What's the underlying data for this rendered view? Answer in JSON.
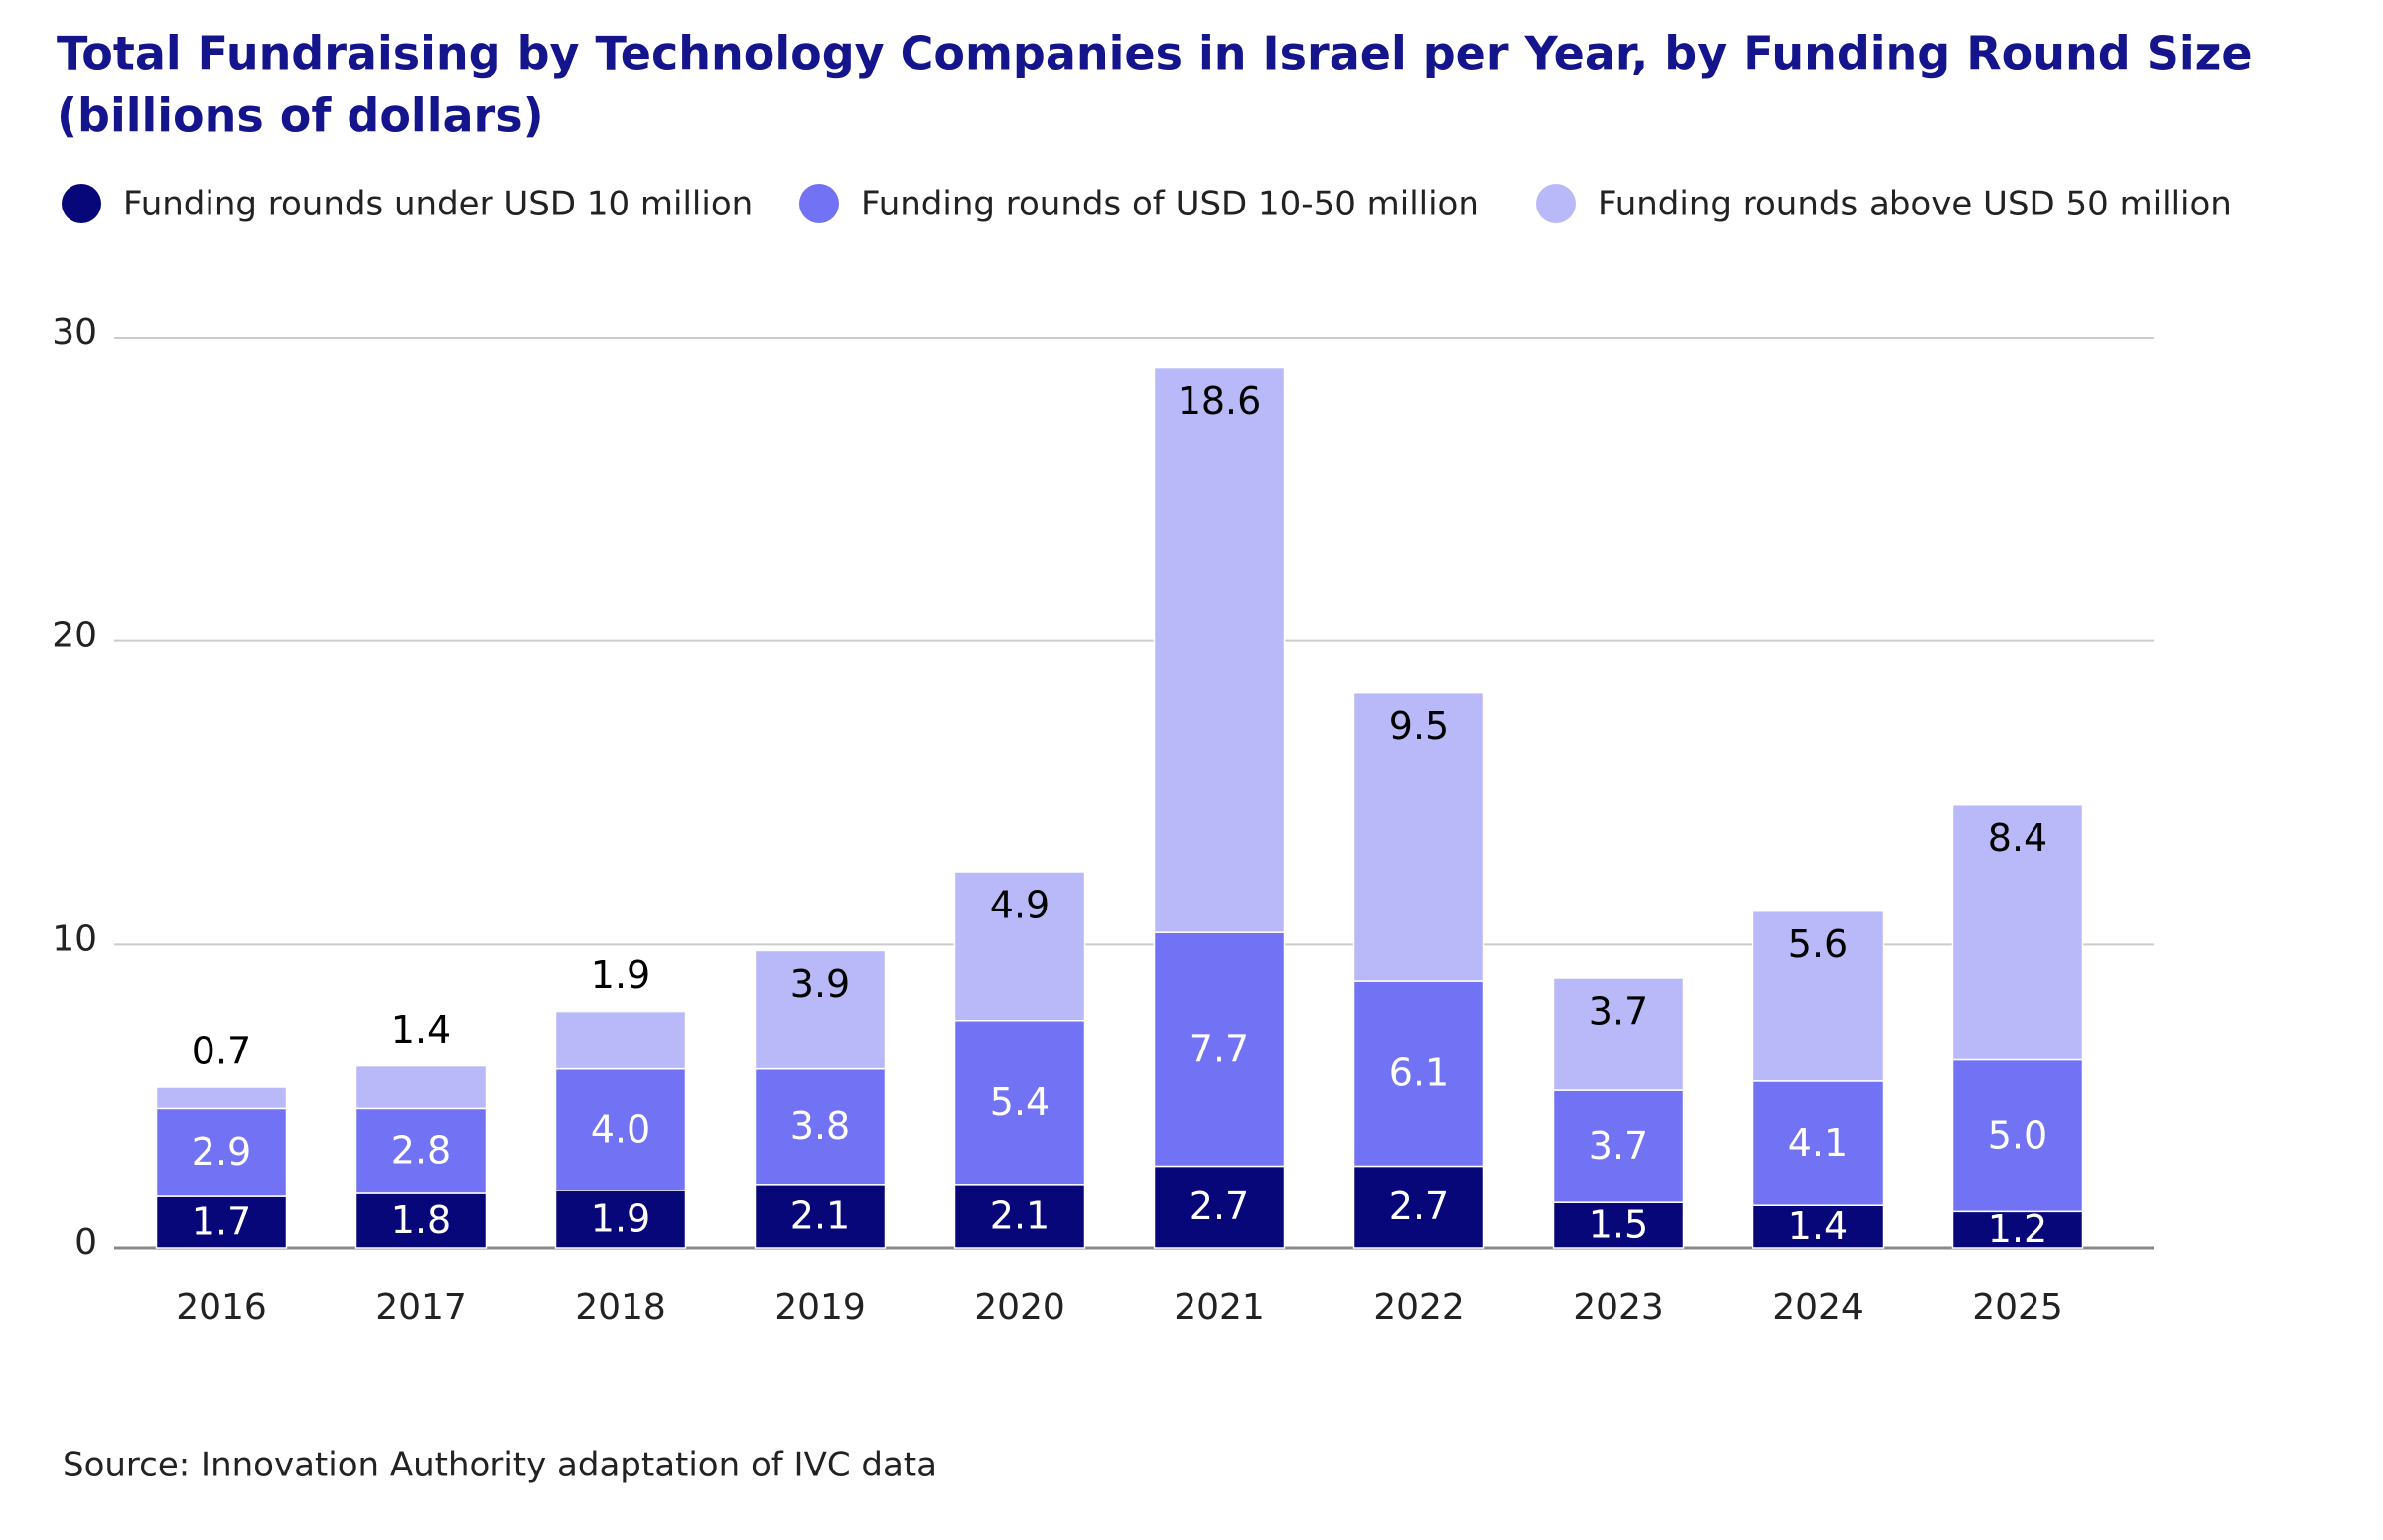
{
  "chart_data": {
    "type": "stacked_bar",
    "title": "Total Fundraising by Technology Companies in Israel per Year, by Funding Round Size",
    "subtitle": "(billions of dollars)",
    "source": "Source: Innovation Authority adaptation of IVC data",
    "categories": [
      "2016",
      "2017",
      "2018",
      "2019",
      "2020",
      "2021",
      "2022",
      "2023",
      "2024",
      "2025"
    ],
    "series": [
      {
        "name": "Funding rounds under USD 10 million",
        "color": "#07077a",
        "label_color": "#ffffff",
        "values": [
          1.7,
          1.8,
          1.9,
          2.1,
          2.1,
          2.7,
          2.7,
          1.5,
          1.4,
          1.2
        ]
      },
      {
        "name": "Funding rounds of USD 10-50 million",
        "color": "#7272f4",
        "label_color": "#ffffff",
        "values": [
          2.9,
          2.8,
          4,
          3.8,
          5.4,
          7.7,
          6.1,
          3.7,
          4.1,
          5
        ],
        "value_labels": [
          "2.9",
          "2.8",
          "4.0",
          "3.8",
          "5.4",
          "7.7",
          "6.1",
          "3.7",
          "4.1",
          "5.0"
        ]
      },
      {
        "name": "Funding rounds above USD 50 million",
        "color": "#b9b9f9",
        "label_color": "#000000",
        "values": [
          0.7,
          1.4,
          1.9,
          3.9,
          4.9,
          18.6,
          9.5,
          3.7,
          5.6,
          8.4
        ]
      }
    ],
    "ylim": [
      0,
      30
    ],
    "yticks": [
      0,
      10,
      20,
      30
    ],
    "grid": true,
    "legend": "top"
  }
}
